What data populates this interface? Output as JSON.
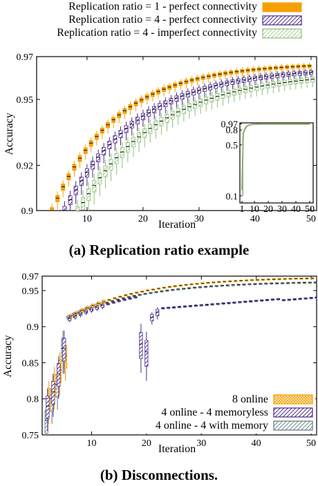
{
  "captions": {
    "a": "(a) Replication ratio example",
    "b": "(b) Disconnections."
  },
  "chart_data": [
    {
      "id": "a",
      "type": "box",
      "xlabel": "Iteration",
      "ylabel": "Accuracy",
      "xlim": [
        1,
        51
      ],
      "ylim": [
        0.9,
        0.97
      ],
      "y_scale": "log",
      "grid": false,
      "legend_position": "top, outside plot",
      "xticks": [
        10,
        20,
        30,
        40,
        50
      ],
      "yticks": [
        0.9,
        0.92,
        0.95,
        0.97
      ],
      "ytick_labels": [
        "0.9",
        "0.92",
        "0.95",
        "0.97"
      ],
      "colors": {
        "orange": "#f5a000",
        "purple": "#4b2a8c",
        "green": "#8fbf7a"
      },
      "series": [
        {
          "name": "Replication ratio = 1 - perfect connectivity",
          "fill": "solid",
          "color": "#f5a000",
          "offset": -0.28,
          "median_curve": {
            "start": 0.9,
            "end": 0.967,
            "rate": 0.085,
            "start_x": 4
          },
          "spread": 0.0025
        },
        {
          "name": "Replication ratio = 4 - perfect connectivity",
          "fill": "hatch",
          "color": "#4b2a8c",
          "offset": 0,
          "median_curve": {
            "start": 0.895,
            "end": 0.965,
            "rate": 0.075,
            "start_x": 5
          },
          "spread": 0.004
        },
        {
          "name": "Replication ratio = 4 - imperfect connectivity",
          "fill": "hatch",
          "color": "#8fbf7a",
          "offset": 0.28,
          "median_curve": {
            "start": 0.89,
            "end": 0.963,
            "rate": 0.068,
            "start_x": 6
          },
          "spread": 0.006
        }
      ],
      "inset": {
        "xlim": [
          1,
          51
        ],
        "ylim": [
          0.08,
          1.0
        ],
        "y_scale": "log",
        "xticks": [
          1,
          10,
          20,
          30,
          40,
          50
        ],
        "yticks": [
          0.1,
          0.5,
          0.8,
          0.97
        ],
        "ytick_labels": [
          "0.1",
          "0.5",
          "0.8",
          "0.97"
        ]
      }
    },
    {
      "id": "b",
      "type": "box",
      "xlabel": "Iteration",
      "ylabel": "Accuracy",
      "xlim": [
        1,
        51
      ],
      "ylim": [
        0.75,
        0.97
      ],
      "grid": false,
      "legend_position": "bottom-right",
      "xticks": [
        10,
        20,
        30,
        40,
        50
      ],
      "yticks": [
        0.75,
        0.8,
        0.85,
        0.9,
        0.95,
        0.97
      ],
      "ytick_labels": [
        "0.75",
        "0.8",
        "0.85",
        "0.9",
        "0.95",
        "0.97"
      ],
      "series": [
        {
          "name": "8 online",
          "fill": "crosshatch",
          "color": "#f5a000",
          "offset": 0.22
        },
        {
          "name": "4 online - 4 memoryless",
          "fill": "hatch",
          "color": "#4b2a8c",
          "offset": 0
        },
        {
          "name": "4 online - 4 with memory",
          "fill": "hatch",
          "color": "#5f7a80",
          "offset": -0.22
        }
      ]
    }
  ]
}
